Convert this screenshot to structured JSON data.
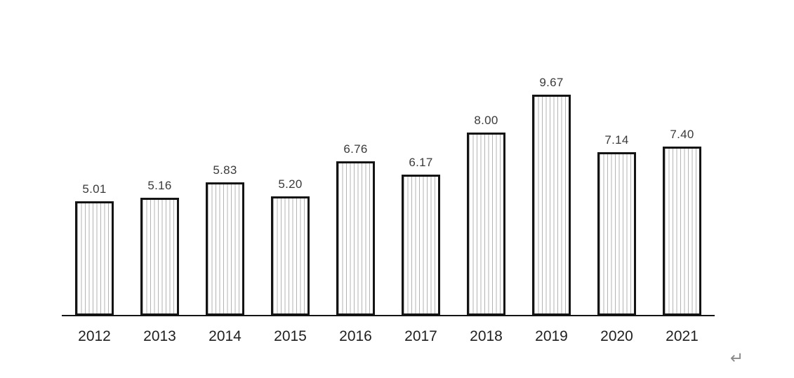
{
  "chart_data": {
    "type": "bar",
    "title": "",
    "xlabel": "",
    "ylabel": "",
    "categories": [
      "2012",
      "2013",
      "2014",
      "2015",
      "2016",
      "2017",
      "2018",
      "2019",
      "2020",
      "2021"
    ],
    "values": [
      5.01,
      5.16,
      5.83,
      5.2,
      6.76,
      6.17,
      8.0,
      9.67,
      7.14,
      7.4
    ],
    "labels": [
      "5.01",
      "5.16",
      "5.83",
      "5.20",
      "6.76",
      "6.17",
      "8.00",
      "9.67",
      "7.14",
      "7.40"
    ],
    "ylim": [
      0,
      10.5
    ],
    "grid": false,
    "legend": "none",
    "bar_style": {
      "fill": "#ffffff",
      "hatch": "vertical-lines",
      "hatch_color": "#b3b3b3",
      "border_color": "#141414"
    },
    "axis_color": "#141414"
  },
  "page": {
    "paragraph_mark": "↵"
  }
}
